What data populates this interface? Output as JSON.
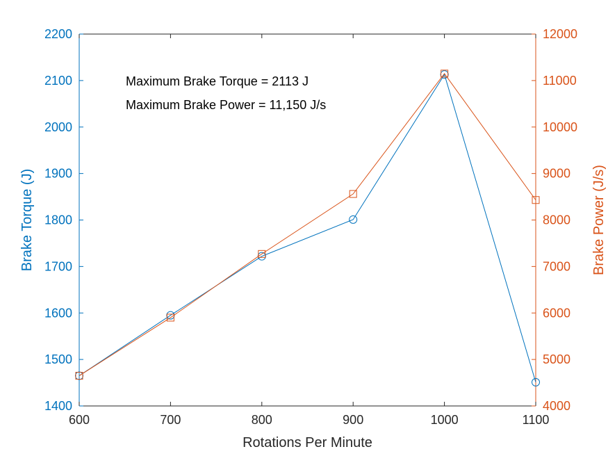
{
  "colors": {
    "left_axis": "#0072BD",
    "right_axis": "#D95319",
    "x_axis": "#262626",
    "annotation": "#000000"
  },
  "chart_data": {
    "type": "line",
    "x": [
      600,
      700,
      800,
      900,
      1000,
      1100
    ],
    "xlabel": "Rotations Per Minute",
    "xlim": [
      600,
      1100
    ],
    "xticks": [
      "600",
      "700",
      "800",
      "900",
      "1000",
      "1100"
    ],
    "ylabel_left": "Brake Torque (J)",
    "ylim_left": [
      1400,
      2200
    ],
    "yticks_left": [
      "1400",
      "1500",
      "1600",
      "1700",
      "1800",
      "1900",
      "2000",
      "2100",
      "2200"
    ],
    "ylabel_right": "Brake Power (J/s)",
    "ylim_right": [
      4000,
      12000
    ],
    "yticks_right": [
      "4000",
      "5000",
      "6000",
      "7000",
      "8000",
      "9000",
      "10000",
      "11000",
      "12000"
    ],
    "grid": false,
    "series": [
      {
        "axis": "left",
        "marker": "circle",
        "values": [
          1465,
          1595,
          1722,
          1801,
          2113,
          1451
        ]
      },
      {
        "axis": "right",
        "marker": "square",
        "values": [
          4650,
          5900,
          7270,
          8560,
          11150,
          8430
        ]
      }
    ],
    "annotations": [
      "Maximum Brake Torque = 2113 J",
      "Maximum Brake Power = 11,150 J/s"
    ]
  }
}
